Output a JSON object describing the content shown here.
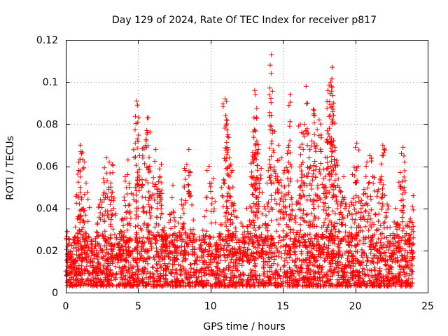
{
  "chart_data": {
    "type": "scatter",
    "title": "Day 129 of 2024, Rate Of TEC Index for receiver p817",
    "xlabel": "GPS time / hours",
    "ylabel": "ROTI / TECUs",
    "xlim": [
      0,
      25
    ],
    "ylim": [
      0,
      0.12
    ],
    "xticks": [
      0,
      5,
      10,
      15,
      20,
      25
    ],
    "xtick_labels": [
      "0",
      "5",
      "10",
      "15",
      "20",
      "25"
    ],
    "yticks": [
      0,
      0.02,
      0.04,
      0.06,
      0.08,
      0.1,
      0.12
    ],
    "ytick_labels": [
      "0",
      "0.02",
      "0.04",
      "0.06",
      "0.08",
      "0.1",
      "0.12"
    ],
    "grid": true,
    "marker": "+",
    "color": "#ff0000",
    "series": [
      {
        "name": "ROTI",
        "points": [
          [
            0.05,
            0.008
          ],
          [
            0.1,
            0.029
          ],
          [
            0.2,
            0.018
          ],
          [
            0.3,
            0.012
          ],
          [
            0.5,
            0.025
          ],
          [
            0.6,
            0.015
          ],
          [
            0.8,
            0.035
          ],
          [
            0.9,
            0.058
          ],
          [
            1.0,
            0.07
          ],
          [
            1.05,
            0.067
          ],
          [
            1.1,
            0.045
          ],
          [
            1.2,
            0.031
          ],
          [
            1.3,
            0.062
          ],
          [
            1.4,
            0.052
          ],
          [
            1.5,
            0.02
          ],
          [
            1.7,
            0.014
          ],
          [
            1.8,
            0.025
          ],
          [
            2.0,
            0.01
          ],
          [
            2.2,
            0.033
          ],
          [
            2.4,
            0.044
          ],
          [
            2.6,
            0.054
          ],
          [
            2.8,
            0.064
          ],
          [
            3.0,
            0.062
          ],
          [
            3.1,
            0.052
          ],
          [
            3.2,
            0.061
          ],
          [
            3.3,
            0.04
          ],
          [
            3.5,
            0.018
          ],
          [
            3.7,
            0.028
          ],
          [
            3.9,
            0.035
          ],
          [
            4.1,
            0.055
          ],
          [
            4.3,
            0.063
          ],
          [
            4.4,
            0.042
          ],
          [
            4.6,
            0.02
          ],
          [
            4.8,
            0.071
          ],
          [
            4.9,
            0.091
          ],
          [
            4.95,
            0.089
          ],
          [
            5.1,
            0.065
          ],
          [
            5.2,
            0.051
          ],
          [
            5.4,
            0.069
          ],
          [
            5.5,
            0.045
          ],
          [
            5.6,
            0.077
          ],
          [
            5.7,
            0.083
          ],
          [
            5.8,
            0.06
          ],
          [
            6.0,
            0.052
          ],
          [
            6.2,
            0.068
          ],
          [
            6.3,
            0.04
          ],
          [
            6.5,
            0.055
          ],
          [
            6.6,
            0.061
          ],
          [
            6.8,
            0.031
          ],
          [
            7.0,
            0.022
          ],
          [
            7.2,
            0.037
          ],
          [
            7.4,
            0.051
          ],
          [
            7.6,
            0.026
          ],
          [
            7.8,
            0.033
          ],
          [
            8.0,
            0.044
          ],
          [
            8.2,
            0.059
          ],
          [
            8.5,
            0.068
          ],
          [
            8.6,
            0.057
          ],
          [
            8.8,
            0.03
          ],
          [
            9.0,
            0.015
          ],
          [
            9.2,
            0.025
          ],
          [
            9.5,
            0.027
          ],
          [
            9.7,
            0.039
          ],
          [
            9.9,
            0.06
          ],
          [
            10.2,
            0.054
          ],
          [
            10.4,
            0.023
          ],
          [
            10.6,
            0.028
          ],
          [
            10.8,
            0.046
          ],
          [
            11.0,
            0.092
          ],
          [
            11.05,
            0.084
          ],
          [
            11.1,
            0.08
          ],
          [
            11.2,
            0.075
          ],
          [
            11.3,
            0.064
          ],
          [
            11.4,
            0.061
          ],
          [
            11.5,
            0.058
          ],
          [
            11.7,
            0.039
          ],
          [
            11.9,
            0.025
          ],
          [
            12.1,
            0.033
          ],
          [
            12.3,
            0.025
          ],
          [
            12.5,
            0.04
          ],
          [
            12.7,
            0.034
          ],
          [
            12.8,
            0.055
          ],
          [
            12.9,
            0.063
          ],
          [
            13.0,
            0.083
          ],
          [
            13.05,
            0.096
          ],
          [
            13.1,
            0.094
          ],
          [
            13.2,
            0.072
          ],
          [
            13.3,
            0.068
          ],
          [
            13.5,
            0.059
          ],
          [
            13.7,
            0.041
          ],
          [
            13.9,
            0.052
          ],
          [
            14.1,
            0.061
          ],
          [
            14.2,
            0.113
          ],
          [
            14.3,
            0.077
          ],
          [
            14.5,
            0.055
          ],
          [
            14.7,
            0.07
          ],
          [
            14.9,
            0.064
          ],
          [
            15.1,
            0.058
          ],
          [
            15.3,
            0.066
          ],
          [
            15.4,
            0.07
          ],
          [
            15.5,
            0.094
          ],
          [
            15.6,
            0.045
          ],
          [
            15.8,
            0.035
          ],
          [
            16.0,
            0.053
          ],
          [
            16.2,
            0.08
          ],
          [
            16.3,
            0.076
          ],
          [
            16.4,
            0.068
          ],
          [
            16.6,
            0.098
          ],
          [
            16.7,
            0.09
          ],
          [
            16.8,
            0.064
          ],
          [
            17.0,
            0.072
          ],
          [
            17.1,
            0.087
          ],
          [
            17.2,
            0.084
          ],
          [
            17.3,
            0.06
          ],
          [
            17.5,
            0.082
          ],
          [
            17.6,
            0.08
          ],
          [
            17.8,
            0.054
          ],
          [
            17.9,
            0.045
          ],
          [
            18.0,
            0.072
          ],
          [
            18.1,
            0.096
          ],
          [
            18.2,
            0.078
          ],
          [
            18.3,
            0.1
          ],
          [
            18.35,
            0.098
          ],
          [
            18.4,
            0.107
          ],
          [
            18.45,
            0.086
          ],
          [
            18.5,
            0.09
          ],
          [
            18.6,
            0.069
          ],
          [
            18.7,
            0.062
          ],
          [
            18.9,
            0.05
          ],
          [
            19.0,
            0.048
          ],
          [
            19.2,
            0.055
          ],
          [
            19.4,
            0.042
          ],
          [
            19.6,
            0.041
          ],
          [
            19.8,
            0.056
          ],
          [
            20.0,
            0.069
          ],
          [
            20.1,
            0.071
          ],
          [
            20.2,
            0.06
          ],
          [
            20.4,
            0.04
          ],
          [
            20.6,
            0.049
          ],
          [
            20.8,
            0.062
          ],
          [
            21.0,
            0.065
          ],
          [
            21.2,
            0.055
          ],
          [
            21.4,
            0.037
          ],
          [
            21.6,
            0.049
          ],
          [
            21.8,
            0.055
          ],
          [
            21.9,
            0.07
          ],
          [
            22.0,
            0.068
          ],
          [
            22.2,
            0.042
          ],
          [
            22.4,
            0.031
          ],
          [
            22.6,
            0.028
          ],
          [
            22.8,
            0.04
          ],
          [
            22.9,
            0.033
          ],
          [
            23.1,
            0.057
          ],
          [
            23.3,
            0.069
          ],
          [
            23.4,
            0.062
          ],
          [
            23.5,
            0.032
          ],
          [
            23.6,
            0.025
          ],
          [
            23.8,
            0.035
          ],
          [
            23.9,
            0.03
          ],
          [
            24.0,
            0.046
          ]
        ]
      }
    ],
    "background_noise": {
      "description_range": [
        0.003,
        0.028
      ],
      "count": 2600
    }
  }
}
